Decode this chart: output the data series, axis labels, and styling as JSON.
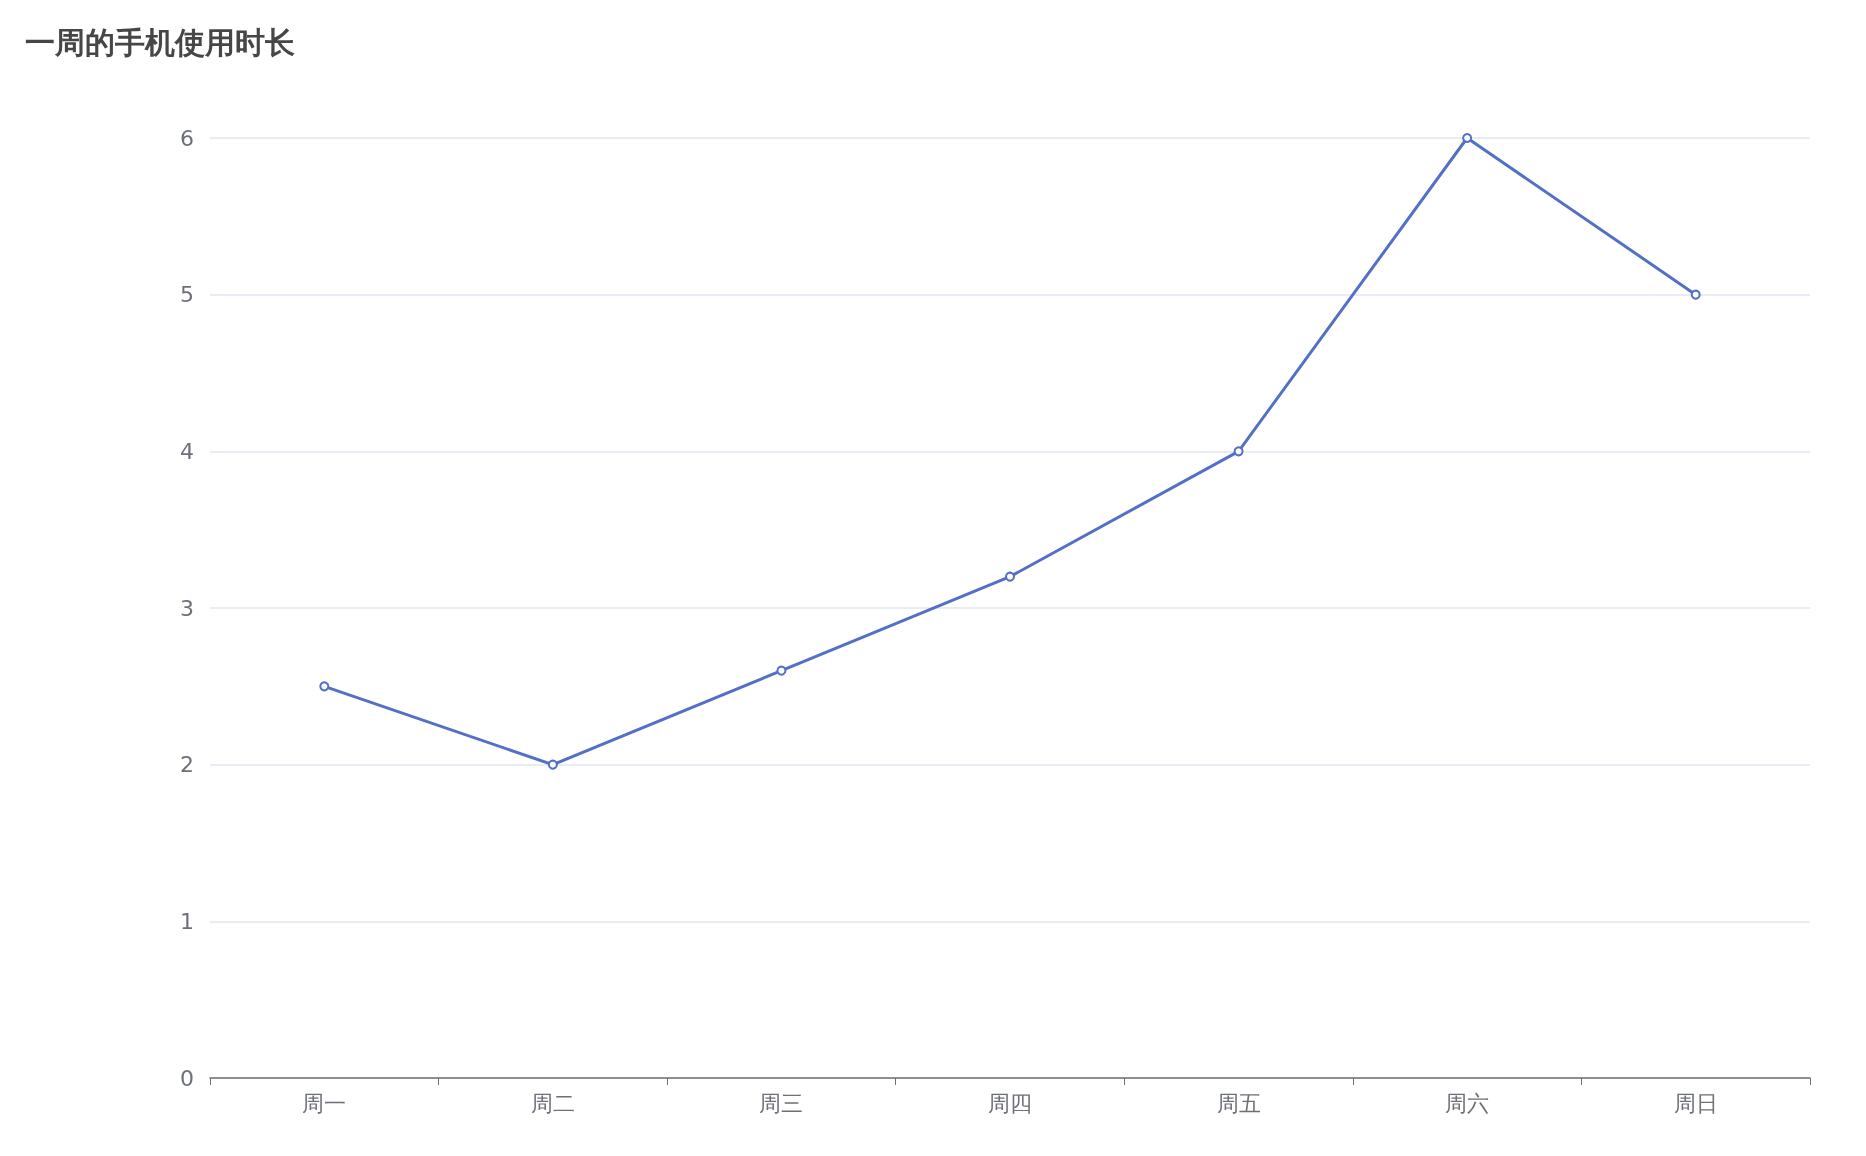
{
  "chart_data": {
    "type": "line",
    "title": "一周的手机使用时长",
    "categories": [
      "周一",
      "周二",
      "周三",
      "周四",
      "周五",
      "周六",
      "周日"
    ],
    "series": [
      {
        "color": "#5470c6",
        "values": [
          2.5,
          2,
          2.6,
          3.2,
          4,
          6,
          5
        ]
      }
    ],
    "ylim": [
      0,
      6
    ],
    "yticks": [
      0,
      1,
      2,
      3,
      4,
      5,
      6
    ],
    "grid": "y",
    "marker": "circle",
    "line_style": "solid"
  }
}
